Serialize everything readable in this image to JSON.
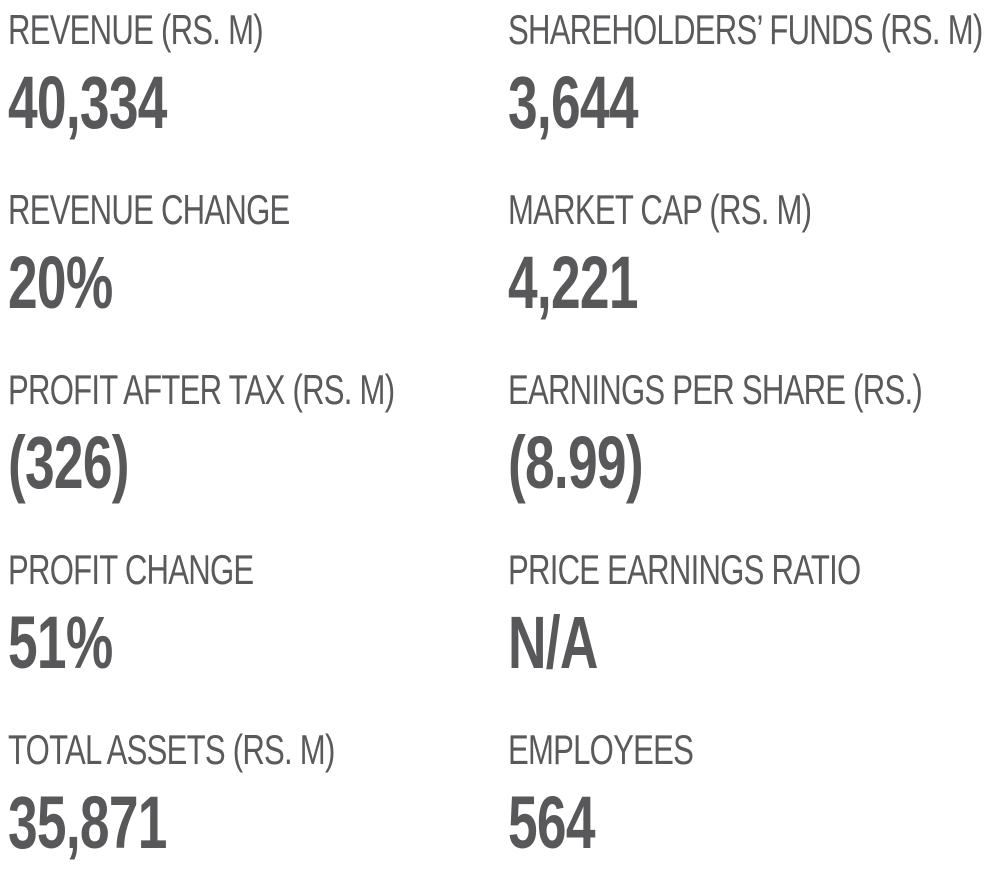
{
  "stats": [
    {
      "label": "REVENUE (RS. M)",
      "value": "40,334"
    },
    {
      "label": "SHAREHOLDERS’ FUNDS (RS. M)",
      "value": "3,644"
    },
    {
      "label": "REVENUE CHANGE",
      "value": "20%"
    },
    {
      "label": "MARKET CAP (RS. M)",
      "value": "4,221"
    },
    {
      "label": "PROFIT AFTER TAX (RS. M)",
      "value": "(326)"
    },
    {
      "label": "EARNINGS PER SHARE (RS.)",
      "value": "(8.99)"
    },
    {
      "label": "PROFIT CHANGE",
      "value": "51%"
    },
    {
      "label": "PRICE EARNINGS RATIO",
      "value": "N/A"
    },
    {
      "label": "TOTAL ASSETS (RS. M)",
      "value": "35,871"
    },
    {
      "label": "EMPLOYEES",
      "value": "564"
    }
  ],
  "colors": {
    "text": "#58585a",
    "background": "#ffffff"
  }
}
